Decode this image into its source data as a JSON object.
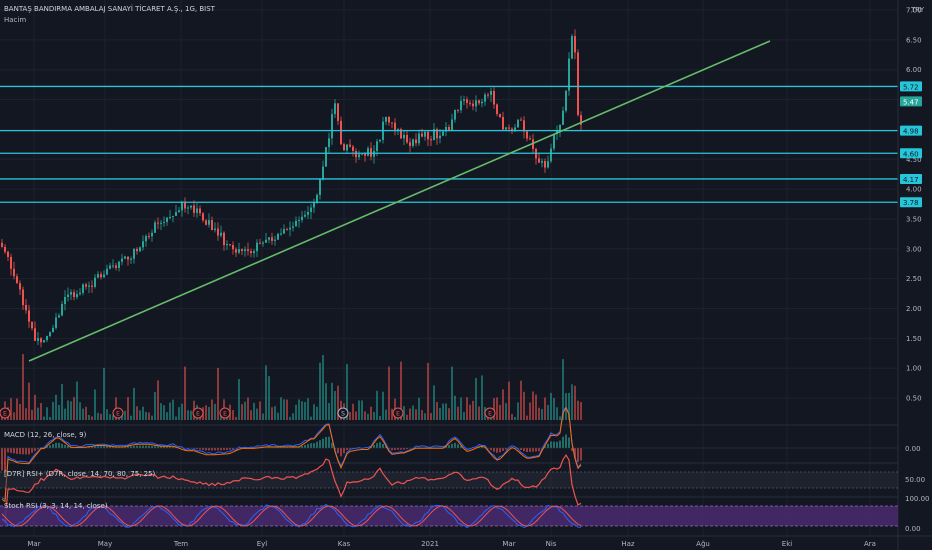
{
  "header": {
    "symbol_title": "BANTAŞ BANDIRMA AMBALAJ SANAYİ TİCARET A.Ş., 1G, BIST",
    "volume_label": "Hacim",
    "currency": "TRY"
  },
  "price_scale": {
    "ticks": [
      "7.00",
      "6.50",
      "6.00",
      "5.50",
      "5.00",
      "4.50",
      "4.00",
      "3.50",
      "3.00",
      "2.50",
      "2.00",
      "1.50",
      "1.00",
      "0.50"
    ],
    "current_price": "5.47"
  },
  "horizontal_lines": [
    {
      "label": "5.72",
      "color": "#26c6da"
    },
    {
      "label": "4.98",
      "color": "#26c6da"
    },
    {
      "label": "4.60",
      "color": "#26c6da"
    },
    {
      "label": "4.17",
      "color": "#26c6da"
    },
    {
      "label": "3.78",
      "color": "#26c6da"
    }
  ],
  "trendline": {
    "color": "#66bb6a"
  },
  "time_axis": [
    "Mar",
    "May",
    "Tem",
    "Eyl",
    "Kas",
    "2021",
    "Mar",
    "Nis",
    "Haz",
    "Ağu",
    "Eki",
    "Ara"
  ],
  "events": [
    "E",
    "E",
    "E",
    "E",
    "S",
    "E",
    "E"
  ],
  "indicators": {
    "macd": {
      "label": "MACD (12, 26, close, 9)",
      "ticks": [
        "0.00"
      ]
    },
    "rsi": {
      "label": "[D7R] RSI+ (D7R, close, 14, 70, 80, 75, 25)",
      "ticks": [
        "50.00"
      ]
    },
    "stoch": {
      "label": "Stoch RSI (3, 3, 14, 14, close)",
      "ticks": [
        "100.00",
        "0.00"
      ]
    }
  },
  "colors": {
    "background": "#131722",
    "up": "#26a69a",
    "down": "#ef5350",
    "level": "#26c6da",
    "trend": "#66bb6a",
    "stoch_band": "#4a2a6e"
  }
}
